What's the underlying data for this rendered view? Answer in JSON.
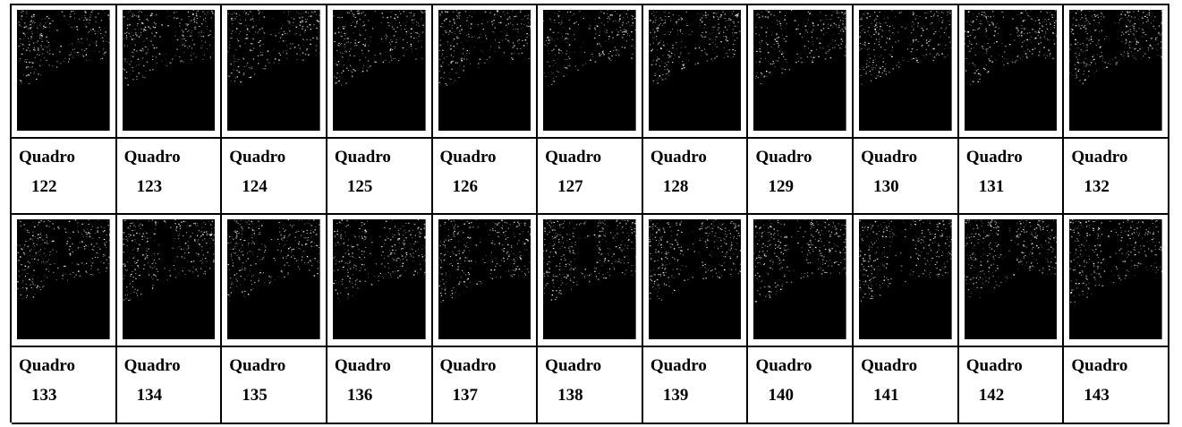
{
  "rows": [
    {
      "frames": [
        {
          "word": "Quadro",
          "number": "122"
        },
        {
          "word": "Quadro",
          "number": "123"
        },
        {
          "word": "Quadro",
          "number": "124"
        },
        {
          "word": "Quadro",
          "number": "125"
        },
        {
          "word": "Quadro",
          "number": "126"
        },
        {
          "word": "Quadro",
          "number": "127"
        },
        {
          "word": "Quadro",
          "number": "128"
        },
        {
          "word": "Quadro",
          "number": "129"
        },
        {
          "word": "Quadro",
          "number": "130"
        },
        {
          "word": "Quadro",
          "number": "131"
        },
        {
          "word": "Quadro",
          "number": "132"
        }
      ]
    },
    {
      "frames": [
        {
          "word": "Quadro",
          "number": "133"
        },
        {
          "word": "Quadro",
          "number": "134"
        },
        {
          "word": "Quadro",
          "number": "135"
        },
        {
          "word": "Quadro",
          "number": "136"
        },
        {
          "word": "Quadro",
          "number": "137"
        },
        {
          "word": "Quadro",
          "number": "138"
        },
        {
          "word": "Quadro",
          "number": "139"
        },
        {
          "word": "Quadro",
          "number": "140"
        },
        {
          "word": "Quadro",
          "number": "141"
        },
        {
          "word": "Quadro",
          "number": "142"
        },
        {
          "word": "Quadro",
          "number": "143"
        }
      ]
    }
  ],
  "colors": {
    "border": "#000000",
    "frame_background": "#000000",
    "speckle": "#ffffff"
  }
}
